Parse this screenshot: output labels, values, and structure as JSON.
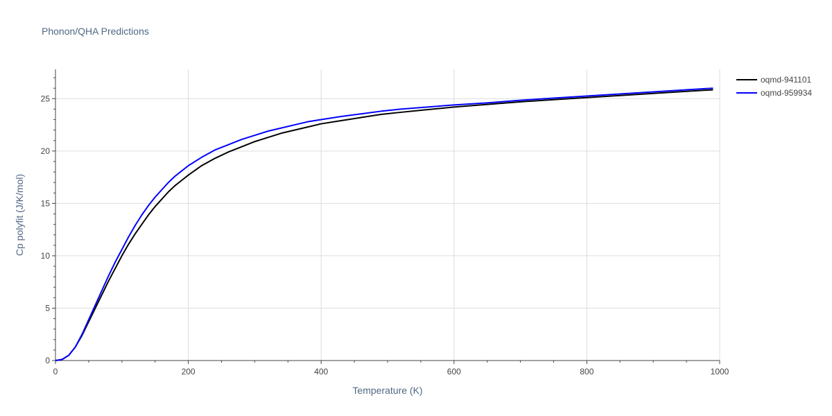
{
  "chart_data": {
    "type": "line",
    "title": "Phonon/QHA Predictions",
    "xlabel": "Temperature (K)",
    "ylabel": "Cp polyfit (J/K/mol)",
    "xlim": [
      0,
      1000
    ],
    "ylim": [
      0,
      27.8
    ],
    "x_ticks": [
      0,
      200,
      400,
      600,
      800,
      1000
    ],
    "x_tick_labels": [
      "0",
      "200",
      "400",
      "600",
      "800",
      "1000"
    ],
    "y_ticks": [
      0,
      5,
      10,
      15,
      20,
      25
    ],
    "y_tick_labels": [
      "0",
      "5",
      "10",
      "15",
      "20",
      "25"
    ],
    "grid": true,
    "legend_position": "top-right",
    "series": [
      {
        "name": "oqmd-941101",
        "color": "#000000",
        "x": [
          0,
          10,
          20,
          30,
          40,
          50,
          60,
          70,
          80,
          90,
          100,
          110,
          120,
          130,
          140,
          150,
          160,
          170,
          180,
          190,
          200,
          220,
          240,
          260,
          280,
          300,
          320,
          340,
          360,
          380,
          400,
          430,
          460,
          490,
          520,
          560,
          600,
          650,
          700,
          750,
          800,
          850,
          900,
          950,
          990
        ],
        "y": [
          0,
          0.1,
          0.5,
          1.3,
          2.4,
          3.7,
          5.0,
          6.3,
          7.6,
          8.8,
          10.0,
          11.1,
          12.1,
          13.0,
          13.9,
          14.7,
          15.4,
          16.1,
          16.7,
          17.2,
          17.7,
          18.6,
          19.3,
          19.9,
          20.4,
          20.9,
          21.3,
          21.7,
          22.0,
          22.3,
          22.6,
          22.9,
          23.2,
          23.5,
          23.7,
          23.95,
          24.2,
          24.45,
          24.7,
          24.9,
          25.1,
          25.3,
          25.5,
          25.7,
          25.85
        ]
      },
      {
        "name": "oqmd-959934",
        "color": "#0000ff",
        "x": [
          0,
          10,
          20,
          30,
          40,
          50,
          60,
          70,
          80,
          90,
          100,
          110,
          120,
          130,
          140,
          150,
          160,
          170,
          180,
          190,
          200,
          220,
          240,
          260,
          280,
          300,
          320,
          340,
          360,
          380,
          400,
          430,
          460,
          490,
          520,
          560,
          600,
          650,
          700,
          750,
          800,
          850,
          900,
          950,
          990
        ],
        "y": [
          0,
          0.1,
          0.5,
          1.3,
          2.5,
          3.9,
          5.3,
          6.7,
          8.1,
          9.4,
          10.6,
          11.8,
          12.9,
          13.9,
          14.8,
          15.6,
          16.3,
          17.0,
          17.6,
          18.1,
          18.6,
          19.4,
          20.1,
          20.6,
          21.1,
          21.5,
          21.9,
          22.2,
          22.5,
          22.8,
          23.0,
          23.3,
          23.55,
          23.8,
          24.0,
          24.2,
          24.4,
          24.6,
          24.85,
          25.05,
          25.25,
          25.45,
          25.65,
          25.85,
          26.0
        ]
      }
    ]
  }
}
